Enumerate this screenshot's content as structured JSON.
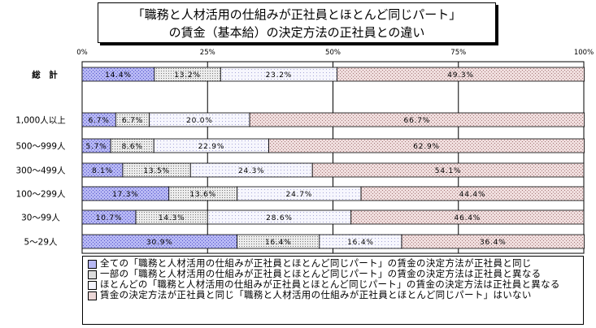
{
  "title": {
    "line1": "「職務と人材活用の仕組みが正社員とほとんど同じパート」",
    "line2": "の賃金（基本給）の決定方法の正社員との違い"
  },
  "colors": {
    "s1": "#9fa0f0",
    "s2": "#dbdbdb",
    "s3": "#f0f0fb",
    "s4": "#e7d1d1"
  },
  "chart_data": {
    "type": "bar",
    "orientation": "horizontal",
    "stacked": true,
    "xlim": [
      0,
      100
    ],
    "x_ticks": [
      "0%",
      "25%",
      "50%",
      "75%",
      "100%"
    ],
    "categories": [
      "総　計",
      "",
      "1,000人以上",
      "500～999人",
      "300～499人",
      "100～299人",
      "30～99人",
      "5～29人"
    ],
    "series": [
      {
        "name": "全ての「職務と人材活用の仕組みが正社員とほとんど同じパート」の賃金の決定方法が正社員と同じ",
        "values": [
          14.4,
          null,
          6.7,
          5.7,
          8.1,
          17.3,
          10.7,
          30.9
        ],
        "labels": [
          "14.4%",
          "",
          "6.7%",
          "5.7%",
          "8.1%",
          "17.3%",
          "10.7%",
          "30.9%"
        ]
      },
      {
        "name": "一部の「職務と人材活用の仕組みが正社員とほとんど同じパート」の賃金の決定方法は正社員と異なる",
        "values": [
          13.2,
          null,
          6.7,
          8.6,
          13.5,
          13.6,
          14.3,
          16.4
        ],
        "labels": [
          "13.2%",
          "",
          "6.7%",
          "8.6%",
          "13.5%",
          "13.6%",
          "14.3%",
          "16.4%"
        ]
      },
      {
        "name": "ほとんどの「職務と人材活用の仕組みが正社員とほとんど同じパート」の賃金の決定方法は正社員と異なる",
        "values": [
          23.2,
          null,
          20.0,
          22.9,
          24.3,
          24.7,
          28.6,
          16.4
        ],
        "labels": [
          "23.2%",
          "",
          "20.0%",
          "22.9%",
          "24.3%",
          "24.7%",
          "28.6%",
          "16.4%"
        ]
      },
      {
        "name": "賃金の決定方法が正社員と同じ「職務と人材活用の仕組みが正社員とほとんど同じパート」はいない",
        "values": [
          49.3,
          null,
          66.7,
          62.9,
          54.1,
          44.4,
          46.4,
          36.4
        ],
        "labels": [
          "49.3%",
          "",
          "66.7%",
          "62.9%",
          "54.1%",
          "44.4%",
          "46.4%",
          "36.4%"
        ]
      }
    ],
    "legend_position": "bottom"
  }
}
